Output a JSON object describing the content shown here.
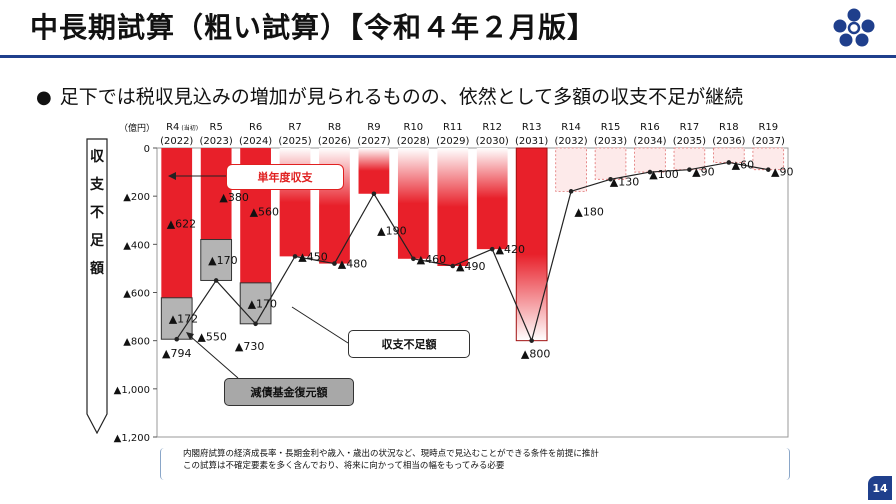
{
  "page": {
    "title": "中長期試算（粗い試算）【令和４年２月版】",
    "subtitle": "足下では税収見込みの増加が見られるものの、依然として多額の収支不足が継続",
    "bullet": "●",
    "page_number": "14",
    "notes": [
      "内閣府試算の経済成長率・長期金利や歳入・歳出の状況など、現時点で見込むことができる条件を前提に推計",
      "この試算は不確定要素を多く含んでおり、将来に向かって相当の幅をもってみる必要"
    ]
  },
  "chart_data": {
    "type": "bar",
    "unit_label": "（億円）",
    "ylabel_chars": [
      "収",
      "支",
      "不",
      "足",
      "額"
    ],
    "ylim": [
      -1200,
      0
    ],
    "yticks": [
      {
        "value": 0,
        "label": "0"
      },
      {
        "value": -200,
        "label": "▲200"
      },
      {
        "value": -400,
        "label": "▲400"
      },
      {
        "value": -600,
        "label": "▲600"
      },
      {
        "value": -800,
        "label": "▲800"
      },
      {
        "value": -1000,
        "label": "▲1,000"
      },
      {
        "value": -1200,
        "label": "▲1,200"
      }
    ],
    "categories": [
      {
        "label": "R4",
        "note": "(当初)",
        "year": "(2022)"
      },
      {
        "label": "R5",
        "note": "",
        "year": "(2023)"
      },
      {
        "label": "R6",
        "note": "",
        "year": "(2024)"
      },
      {
        "label": "R7",
        "note": "",
        "year": "(2025)"
      },
      {
        "label": "R8",
        "note": "",
        "year": "(2026)"
      },
      {
        "label": "R9",
        "note": "",
        "year": "(2027)"
      },
      {
        "label": "R10",
        "note": "",
        "year": "(2028)"
      },
      {
        "label": "R11",
        "note": "",
        "year": "(2029)"
      },
      {
        "label": "R12",
        "note": "",
        "year": "(2030)"
      },
      {
        "label": "R13",
        "note": "",
        "year": "(2031)"
      },
      {
        "label": "R14",
        "note": "",
        "year": "(2032)"
      },
      {
        "label": "R15",
        "note": "",
        "year": "(2033)"
      },
      {
        "label": "R16",
        "note": "",
        "year": "(2034)"
      },
      {
        "label": "R17",
        "note": "",
        "year": "(2035)"
      },
      {
        "label": "R18",
        "note": "",
        "year": "(2036)"
      },
      {
        "label": "R19",
        "note": "",
        "year": "(2037)"
      }
    ],
    "single_year_shortfall": [
      622,
      380,
      560,
      450,
      480,
      190,
      460,
      490,
      420,
      800,
      180,
      130,
      100,
      90,
      60,
      90
    ],
    "fund_restoration": [
      172,
      170,
      170,
      null,
      null,
      null,
      null,
      null,
      null,
      null,
      null,
      null,
      null,
      null,
      null,
      null
    ],
    "total_shortfall": [
      794,
      550,
      730,
      450,
      480,
      190,
      460,
      490,
      420,
      800,
      180,
      130,
      100,
      90,
      60,
      90
    ],
    "bar_labels": [
      "▲622",
      "▲380",
      "▲560",
      "▲450",
      "▲480",
      "▲190",
      "▲460",
      "▲490",
      "▲420",
      "▲800",
      "▲180",
      "▲130",
      "▲100",
      "▲90",
      "▲60",
      "▲90"
    ],
    "fund_labels": [
      "▲172",
      "▲170",
      "▲170"
    ],
    "total_labels": [
      "▲794",
      "▲550",
      "▲730"
    ],
    "series_names": {
      "single": "単年度収支",
      "total": "収支不足額",
      "fund": "減債基金復元額"
    },
    "colors": {
      "bar_red": "#e8202a",
      "fund_gray": "#b4b4b4",
      "line": "#222222",
      "axis": "#555555"
    }
  }
}
